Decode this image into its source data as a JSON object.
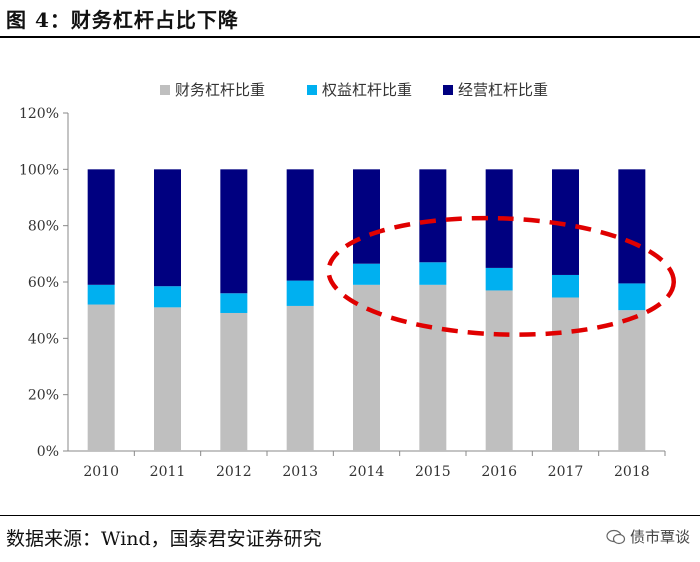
{
  "figure_title": "图 4：财务杠杆占比下降",
  "source_note": "数据来源：Wind，国泰君安证券研究",
  "watermark": "债市覃谈",
  "colors": {
    "finance": "#bfbfbf",
    "equity": "#00b0f0",
    "operating": "#000080",
    "highlight": "#e00000"
  },
  "chart_data": {
    "type": "bar",
    "stacked": true,
    "title": "",
    "xlabel": "",
    "ylabel": "",
    "categories": [
      "2010",
      "2011",
      "2012",
      "2013",
      "2014",
      "2015",
      "2016",
      "2017",
      "2018"
    ],
    "series": [
      {
        "name": "财务杠杆比重",
        "values": [
          52,
          51,
          49,
          51.5,
          59,
          59,
          57,
          54.5,
          50
        ]
      },
      {
        "name": "权益杠杆比重",
        "values": [
          7,
          7.5,
          7,
          9,
          7.5,
          8,
          8,
          8,
          9.5
        ]
      },
      {
        "name": "经营杠杆比重",
        "values": [
          41,
          41.5,
          44,
          39.5,
          33.5,
          33,
          35,
          37.5,
          40.5
        ]
      }
    ],
    "ylim": [
      0,
      120
    ],
    "yticks": [
      0,
      20,
      40,
      60,
      80,
      100,
      120
    ],
    "ytick_labels": [
      "0%",
      "20%",
      "40%",
      "60%",
      "80%",
      "100%",
      "120%"
    ],
    "legend_position": "top",
    "grid": false,
    "annotation": {
      "shape": "dashed ellipse",
      "covers_categories": [
        "2014",
        "2015",
        "2016",
        "2017",
        "2018"
      ]
    }
  }
}
